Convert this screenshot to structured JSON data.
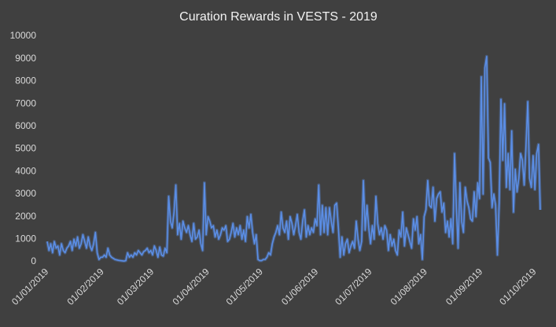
{
  "chart_data": {
    "type": "line",
    "title": "Curation Rewards in VESTS - 2019",
    "color": "#5b8ee6",
    "grid": false,
    "xlim": [
      "01/01/2019",
      "04/10/2019"
    ],
    "xticks": [
      "01/01/2019",
      "01/02/2019",
      "01/03/2019",
      "01/04/2019",
      "01/05/2019",
      "01/06/2019",
      "01/07/2019",
      "01/08/2019",
      "01/09/2019",
      "01/10/2019"
    ],
    "ylim": [
      0,
      10000
    ],
    "yticks": [
      0,
      1000,
      2000,
      3000,
      4000,
      5000,
      6000,
      7000,
      8000,
      9000,
      10000
    ],
    "x": [
      "01/01/2019",
      "02/01/2019",
      "03/01/2019",
      "04/01/2019",
      "05/01/2019",
      "06/01/2019",
      "07/01/2019",
      "08/01/2019",
      "09/01/2019",
      "10/01/2019",
      "11/01/2019",
      "12/01/2019",
      "13/01/2019",
      "14/01/2019",
      "15/01/2019",
      "16/01/2019",
      "17/01/2019",
      "18/01/2019",
      "19/01/2019",
      "20/01/2019",
      "21/01/2019",
      "22/01/2019",
      "23/01/2019",
      "24/01/2019",
      "25/01/2019",
      "26/01/2019",
      "27/01/2019",
      "28/01/2019",
      "29/01/2019",
      "30/01/2019",
      "31/01/2019",
      "01/02/2019",
      "02/02/2019",
      "03/02/2019",
      "04/02/2019",
      "05/02/2019",
      "06/02/2019",
      "07/02/2019",
      "08/02/2019",
      "09/02/2019",
      "10/02/2019",
      "11/02/2019",
      "12/02/2019",
      "13/02/2019",
      "14/02/2019",
      "15/02/2019",
      "16/02/2019",
      "17/02/2019",
      "18/02/2019",
      "19/02/2019",
      "20/02/2019",
      "21/02/2019",
      "22/02/2019",
      "23/02/2019",
      "24/02/2019",
      "25/02/2019",
      "26/02/2019",
      "27/02/2019",
      "28/02/2019",
      "01/03/2019",
      "02/03/2019",
      "03/03/2019",
      "04/03/2019",
      "05/03/2019",
      "06/03/2019",
      "07/03/2019",
      "08/03/2019",
      "09/03/2019",
      "10/03/2019",
      "11/03/2019",
      "12/03/2019",
      "13/03/2019",
      "14/03/2019",
      "15/03/2019",
      "16/03/2019",
      "17/03/2019",
      "18/03/2019",
      "19/03/2019",
      "20/03/2019",
      "21/03/2019",
      "22/03/2019",
      "23/03/2019",
      "24/03/2019",
      "25/03/2019",
      "26/03/2019",
      "27/03/2019",
      "28/03/2019",
      "29/03/2019",
      "30/03/2019",
      "31/03/2019",
      "01/04/2019",
      "02/04/2019",
      "03/04/2019",
      "04/04/2019",
      "05/04/2019",
      "06/04/2019",
      "07/04/2019",
      "08/04/2019",
      "09/04/2019",
      "10/04/2019",
      "11/04/2019",
      "12/04/2019",
      "13/04/2019",
      "14/04/2019",
      "15/04/2019",
      "16/04/2019",
      "17/04/2019",
      "18/04/2019",
      "19/04/2019",
      "20/04/2019",
      "21/04/2019",
      "22/04/2019",
      "23/04/2019",
      "24/04/2019",
      "25/04/2019",
      "26/04/2019",
      "27/04/2019",
      "28/04/2019",
      "29/04/2019",
      "30/04/2019",
      "01/05/2019",
      "02/05/2019",
      "03/05/2019",
      "04/05/2019",
      "05/05/2019",
      "06/05/2019",
      "07/05/2019",
      "08/05/2019",
      "09/05/2019",
      "10/05/2019",
      "11/05/2019",
      "12/05/2019",
      "13/05/2019",
      "14/05/2019",
      "15/05/2019",
      "16/05/2019",
      "17/05/2019",
      "18/05/2019",
      "19/05/2019",
      "20/05/2019",
      "21/05/2019",
      "22/05/2019",
      "23/05/2019",
      "24/05/2019",
      "25/05/2019",
      "26/05/2019",
      "27/05/2019",
      "28/05/2019",
      "29/05/2019",
      "30/05/2019",
      "31/05/2019",
      "01/06/2019",
      "02/06/2019",
      "03/06/2019",
      "04/06/2019",
      "05/06/2019",
      "06/06/2019",
      "07/06/2019",
      "08/06/2019",
      "09/06/2019",
      "10/06/2019",
      "11/06/2019",
      "12/06/2019",
      "13/06/2019",
      "14/06/2019",
      "15/06/2019",
      "16/06/2019",
      "17/06/2019",
      "18/06/2019",
      "19/06/2019",
      "20/06/2019",
      "21/06/2019",
      "22/06/2019",
      "23/06/2019",
      "24/06/2019",
      "25/06/2019",
      "26/06/2019",
      "27/06/2019",
      "28/06/2019",
      "29/06/2019",
      "30/06/2019",
      "01/07/2019",
      "02/07/2019",
      "03/07/2019",
      "04/07/2019",
      "05/07/2019",
      "06/07/2019",
      "07/07/2019",
      "08/07/2019",
      "09/07/2019",
      "10/07/2019",
      "11/07/2019",
      "12/07/2019",
      "13/07/2019",
      "14/07/2019",
      "15/07/2019",
      "16/07/2019",
      "17/07/2019",
      "18/07/2019",
      "19/07/2019",
      "20/07/2019",
      "21/07/2019",
      "22/07/2019",
      "23/07/2019",
      "24/07/2019",
      "25/07/2019",
      "26/07/2019",
      "27/07/2019",
      "28/07/2019",
      "29/07/2019",
      "30/07/2019",
      "31/07/2019",
      "01/08/2019",
      "02/08/2019",
      "03/08/2019",
      "04/08/2019",
      "05/08/2019",
      "06/08/2019",
      "07/08/2019",
      "08/08/2019",
      "09/08/2019",
      "10/08/2019",
      "11/08/2019",
      "12/08/2019",
      "13/08/2019",
      "14/08/2019",
      "15/08/2019",
      "16/08/2019",
      "17/08/2019",
      "18/08/2019",
      "19/08/2019",
      "20/08/2019",
      "21/08/2019",
      "22/08/2019",
      "23/08/2019",
      "24/08/2019",
      "25/08/2019",
      "26/08/2019",
      "27/08/2019",
      "28/08/2019",
      "29/08/2019",
      "30/08/2019",
      "31/08/2019",
      "01/09/2019",
      "02/09/2019",
      "03/09/2019",
      "04/09/2019",
      "05/09/2019",
      "06/09/2019",
      "07/09/2019",
      "08/09/2019",
      "09/09/2019",
      "10/09/2019",
      "11/09/2019",
      "12/09/2019",
      "13/09/2019",
      "14/09/2019",
      "15/09/2019",
      "16/09/2019",
      "17/09/2019",
      "18/09/2019",
      "19/09/2019",
      "20/09/2019",
      "21/09/2019",
      "22/09/2019",
      "23/09/2019",
      "24/09/2019",
      "25/09/2019",
      "26/09/2019",
      "27/09/2019",
      "28/09/2019",
      "29/09/2019",
      "30/09/2019",
      "01/10/2019",
      "02/10/2019",
      "03/10/2019",
      "04/10/2019"
    ],
    "values": [
      900,
      500,
      800,
      400,
      900,
      600,
      700,
      300,
      800,
      500,
      400,
      600,
      700,
      900,
      500,
      1000,
      700,
      1100,
      600,
      800,
      1200,
      900,
      600,
      1100,
      700,
      500,
      800,
      1300,
      400,
      100,
      200,
      200,
      300,
      200,
      600,
      300,
      200,
      150,
      100,
      80,
      60,
      50,
      40,
      30,
      50,
      400,
      200,
      300,
      200,
      400,
      300,
      500,
      400,
      300,
      450,
      500,
      600,
      400,
      500,
      300,
      700,
      500,
      200,
      650,
      300,
      250,
      600,
      400,
      2900,
      1800,
      1500,
      2200,
      3400,
      1200,
      1700,
      1000,
      1800,
      1500,
      1300,
      1600,
      1200,
      900,
      1700,
      1000,
      1100,
      1400,
      800,
      500,
      3500,
      1200,
      2000,
      1800,
      1500,
      1600,
      1100,
      1400,
      1000,
      1200,
      1500,
      1400,
      1600,
      900,
      1000,
      1300,
      1700,
      1100,
      1500,
      1200,
      1600,
      1000,
      1400,
      900,
      2000,
      1500,
      2100,
      1300,
      800,
      1200,
      100,
      50,
      50,
      100,
      100,
      200,
      400,
      300,
      800,
      1100,
      1300,
      1600,
      1200,
      2200,
      1500,
      1300,
      1800,
      1000,
      2000,
      1700,
      1200,
      1600,
      2100,
      1300,
      1000,
      1800,
      2300,
      1100,
      1600,
      1200,
      1500,
      1300,
      1900,
      1600,
      3400,
      1200,
      2500,
      1300,
      2400,
      1200,
      2400,
      1800,
      1300,
      2500,
      2600,
      1500,
      200,
      1100,
      300,
      800,
      1000,
      400,
      700,
      900,
      600,
      1800,
      1000,
      500,
      900,
      3600,
      1400,
      2500,
      1500,
      800,
      1600,
      1000,
      2900,
      1700,
      1200,
      1500,
      1000,
      1600,
      1400,
      500,
      1200,
      700,
      1000,
      500,
      300,
      1400,
      1100,
      2200,
      700,
      1500,
      1200,
      900,
      600,
      1900,
      1400,
      2000,
      800,
      1200,
      100,
      2000,
      2300,
      3600,
      2500,
      2400,
      3300,
      1800,
      2800,
      3000,
      3100,
      2200,
      2600,
      1300,
      1800,
      1100,
      1900,
      800,
      4800,
      2500,
      600,
      3500,
      1800,
      1300,
      3300,
      2700,
      2400,
      1900,
      1800,
      3100,
      2000,
      3500,
      2800,
      8200,
      3000,
      8600,
      9100,
      4600,
      4400,
      2400,
      3000,
      2500,
      300,
      2600,
      7200,
      4500,
      7000,
      3300,
      4800,
      3200,
      5800,
      2200,
      4100,
      3100,
      3700,
      4800,
      4500,
      3400,
      5100,
      7100,
      3700,
      3300,
      4700,
      3200,
      4800,
      5200,
      2300
    ]
  }
}
